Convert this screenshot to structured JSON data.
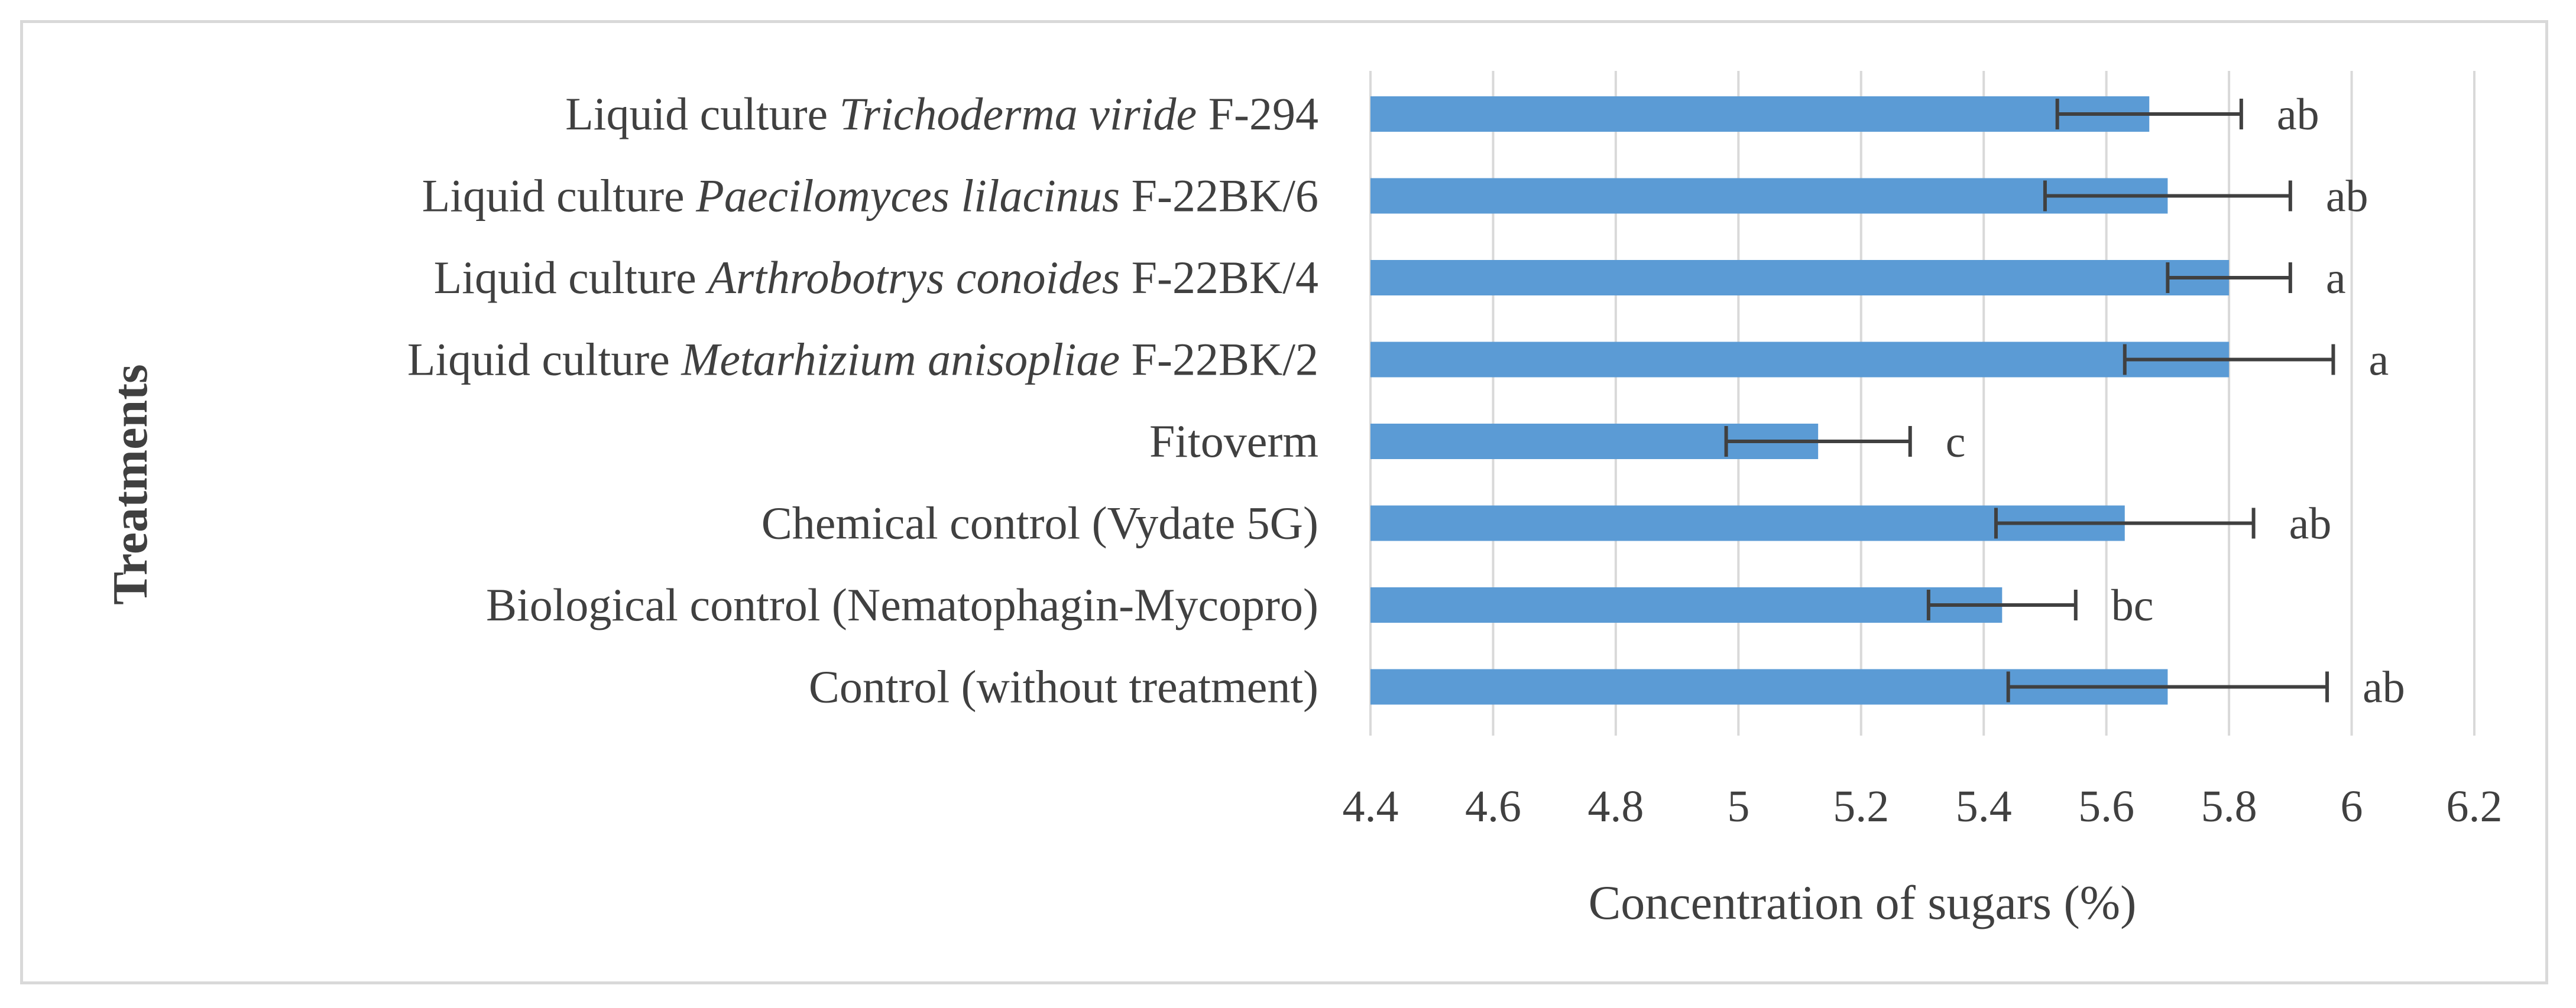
{
  "chart_data": {
    "type": "bar",
    "orientation": "horizontal",
    "title": "",
    "xlabel": "Concentration of sugars (%)",
    "ylabel": "Treatments",
    "xlim": [
      4.4,
      6.2
    ],
    "xticks": [
      "4.4",
      "4.6",
      "4.8",
      "5",
      "5.2",
      "5.4",
      "5.6",
      "5.8",
      "6",
      "6.2"
    ],
    "grid": "vertical",
    "bar_color": "#5b9bd5",
    "errorbar_color": "#404040",
    "categories": [
      {
        "parts": [
          {
            "text": "Liquid culture ",
            "italic": false
          },
          {
            "text": "Trichoderma viride",
            "italic": true
          },
          {
            "text": " F-294",
            "italic": false
          }
        ]
      },
      {
        "parts": [
          {
            "text": "Liquid culture ",
            "italic": false
          },
          {
            "text": "Paecilomyces lilacinus",
            "italic": true
          },
          {
            "text": " F-22BK/6",
            "italic": false
          }
        ]
      },
      {
        "parts": [
          {
            "text": "Liquid culture ",
            "italic": false
          },
          {
            "text": "Arthrobotrys conoides",
            "italic": true
          },
          {
            "text": " F-22BK/4",
            "italic": false
          }
        ]
      },
      {
        "parts": [
          {
            "text": "Liquid culture ",
            "italic": false
          },
          {
            "text": "Metarhizium anisopliae",
            "italic": true
          },
          {
            "text": " F-22BK/2",
            "italic": false
          }
        ]
      },
      {
        "parts": [
          {
            "text": "Fitoverm",
            "italic": false
          }
        ]
      },
      {
        "parts": [
          {
            "text": "Chemical control (Vydate 5G)",
            "italic": false
          }
        ]
      },
      {
        "parts": [
          {
            "text": "Biological control (Nematophagin-Mycopro)",
            "italic": false
          }
        ]
      },
      {
        "parts": [
          {
            "text": "Control (without treatment)",
            "italic": false
          }
        ]
      }
    ],
    "values": [
      5.67,
      5.7,
      5.8,
      5.8,
      5.13,
      5.63,
      5.43,
      5.7
    ],
    "errors": [
      0.15,
      0.2,
      0.1,
      0.17,
      0.15,
      0.21,
      0.12,
      0.26
    ],
    "significance_labels": [
      "ab",
      "ab",
      "a",
      "a",
      "c",
      "ab",
      "bc",
      "ab"
    ]
  }
}
